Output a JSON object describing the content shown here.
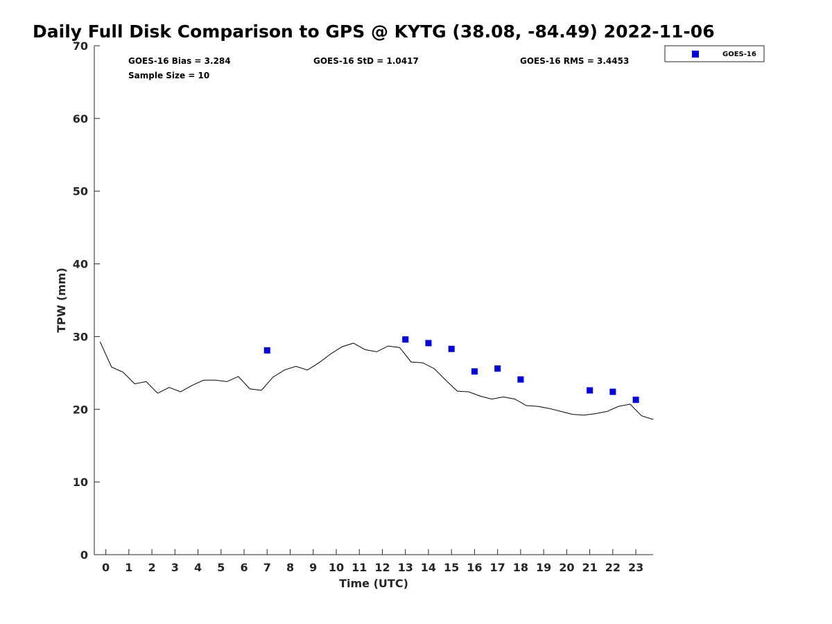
{
  "chart_data": {
    "type": "scatter",
    "title": "Daily Full Disk Comparison to GPS @ KYTG (38.08, -84.49) 2022-11-06",
    "xlabel": "Time (UTC)",
    "ylabel": "TPW (mm)",
    "xlim": [
      -0.5,
      23.75
    ],
    "ylim": [
      0,
      70
    ],
    "x_ticks": [
      "0",
      "1",
      "2",
      "3",
      "4",
      "5",
      "6",
      "7",
      "8",
      "9",
      "10",
      "11",
      "12",
      "13",
      "14",
      "15",
      "16",
      "17",
      "18",
      "19",
      "20",
      "21",
      "22",
      "23"
    ],
    "y_ticks": [
      "0",
      "10",
      "20",
      "30",
      "40",
      "50",
      "60",
      "70"
    ],
    "grid": false,
    "legend_position": "top-right outside",
    "stats": [
      "GOES-16 Bias = 3.284",
      "GOES-16 StD = 1.0417",
      "GOES-16 RMS = 3.4453",
      "Sample Size = 10"
    ],
    "series": [
      {
        "type": "line",
        "color": "#000000",
        "x": [
          -0.25,
          0.25,
          0.75,
          1.25,
          1.75,
          2.25,
          2.75,
          3.25,
          3.75,
          4.25,
          4.75,
          5.25,
          5.75,
          6.25,
          6.75,
          7.25,
          7.75,
          8.25,
          8.75,
          9.25,
          9.75,
          10.25,
          10.75,
          11.25,
          11.75,
          12.25,
          12.75,
          13.25,
          13.75,
          14.25,
          14.75,
          15.25,
          15.75,
          16.25,
          16.75,
          17.25,
          17.75,
          18.25,
          18.75,
          19.25,
          19.75,
          20.25,
          20.75,
          21.25,
          21.75,
          22.25,
          22.75,
          23.25,
          23.75
        ],
        "y": [
          29.3,
          25.8,
          25.1,
          23.5,
          23.8,
          22.2,
          23.0,
          22.4,
          23.3,
          24.0,
          24.0,
          23.8,
          24.5,
          22.8,
          22.6,
          24.4,
          25.4,
          25.9,
          25.4,
          26.4,
          27.6,
          28.6,
          29.1,
          28.2,
          27.9,
          28.7,
          28.5,
          26.5,
          26.4,
          25.6,
          24.0,
          22.5,
          22.4,
          21.8,
          21.4,
          21.7,
          21.4,
          20.5,
          20.4,
          20.1,
          19.7,
          19.3,
          19.2,
          19.4,
          19.7,
          20.4,
          20.7,
          19.1,
          18.6
        ]
      },
      {
        "name": "GOES-16",
        "type": "scatter",
        "color": "#0000e6",
        "x": [
          7,
          13,
          14,
          15,
          16,
          17,
          18,
          21,
          22,
          23
        ],
        "y": [
          28.1,
          29.6,
          29.1,
          28.3,
          25.2,
          25.6,
          24.1,
          22.6,
          22.4,
          21.3
        ]
      }
    ]
  }
}
